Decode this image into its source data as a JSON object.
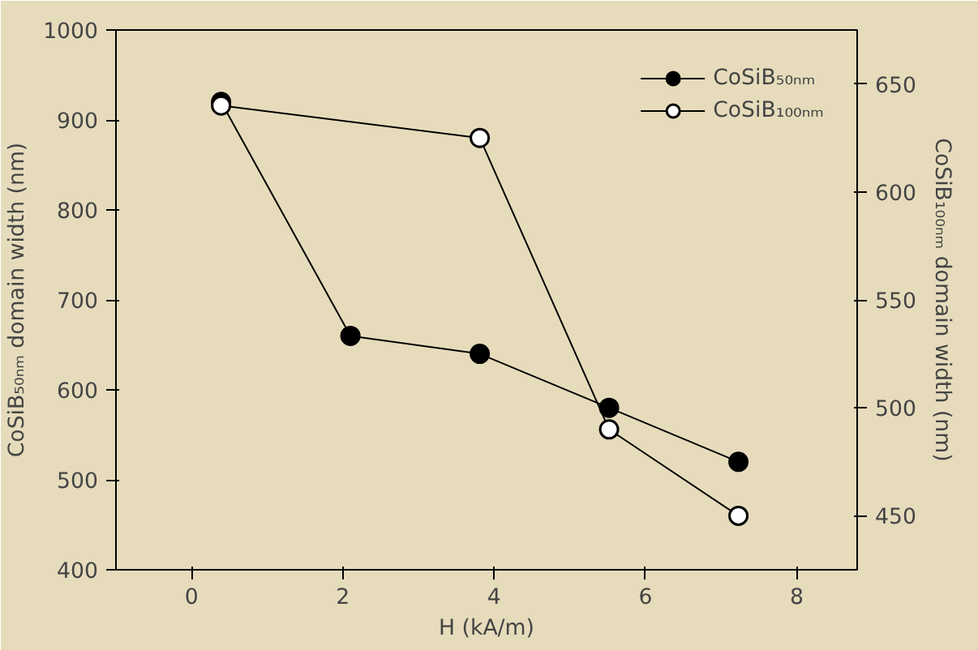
{
  "chart_data": {
    "type": "line",
    "xlabel": "H (kA/m)",
    "ylabel": "CoSiB₅₀ₙₘ domain width (nm)",
    "y2label": "CoSiB₁₀₀ₙₘ domain width (nm)",
    "xlim": [
      -1,
      8.8
    ],
    "xticks": [
      0,
      2,
      4,
      6,
      8
    ],
    "ylim": [
      400,
      1000
    ],
    "yticks": [
      400,
      500,
      600,
      700,
      800,
      900,
      1000
    ],
    "y2lim": [
      425,
      675
    ],
    "y2ticks": [
      450,
      500,
      550,
      600,
      650
    ],
    "grid": false,
    "legend": "top right",
    "marker": "circle",
    "line_style": "solid",
    "series": [
      {
        "name": "CoSiB₅₀ₙₘ",
        "color": "#000000",
        "x": [
          0.39,
          2.1,
          3.81,
          5.52,
          7.23
        ],
        "values": [
          920,
          660,
          640,
          580,
          520
        ]
      },
      {
        "name": "CoSiB₁₀₀ₙₘ",
        "color": "#000000",
        "colors": [
          "#ffffff",
          "#ffffff",
          "#ffffff",
          "#ffffff"
        ],
        "axis": "y2",
        "x": [
          0.39,
          3.81,
          5.52,
          7.23
        ],
        "values": [
          640,
          625,
          490,
          450
        ]
      }
    ]
  }
}
